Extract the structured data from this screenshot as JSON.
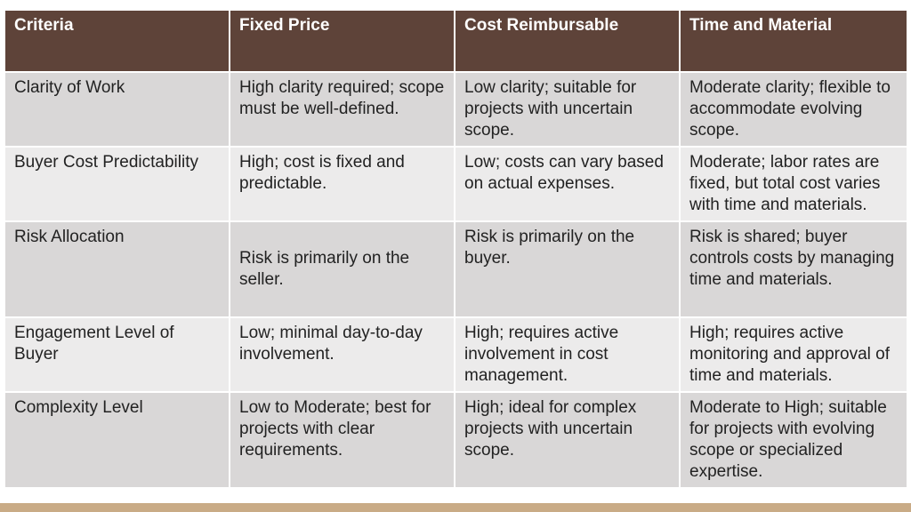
{
  "table": {
    "headers": [
      "Criteria",
      "Fixed Price",
      "Cost Reimbursable",
      "Time and Material"
    ],
    "rows": [
      [
        "Clarity of Work",
        "High clarity required; scope must be well-defined.",
        "Low clarity; suitable for projects with uncertain scope.",
        "Moderate clarity; flexible to accommodate evolving scope."
      ],
      [
        "Buyer Cost Predictability",
        "High; cost is fixed and predictable.",
        "Low; costs can vary based on actual expenses.",
        "Moderate; labor rates are fixed, but total cost varies with time and materials."
      ],
      [
        "Risk Allocation",
        "Risk is primarily on the seller.",
        "Risk is primarily on the buyer.",
        "Risk is shared; buyer controls costs by managing time and materials."
      ],
      [
        "Engagement Level of Buyer",
        "Low; minimal day-to-day involvement.",
        "High; requires active involvement in cost management.",
        "High; requires active monitoring and approval of time and materials."
      ],
      [
        "Complexity Level",
        "Low to Moderate; best for projects with clear requirements.",
        "High; ideal for complex projects with uncertain scope.",
        "Moderate to High; suitable for projects with evolving scope or specialized expertise."
      ]
    ]
  },
  "colors": {
    "header_bg": "#5e4339",
    "row_odd_bg": "#d9d7d7",
    "row_even_bg": "#ecebeb",
    "bottom_bar": "#c9ab86"
  }
}
